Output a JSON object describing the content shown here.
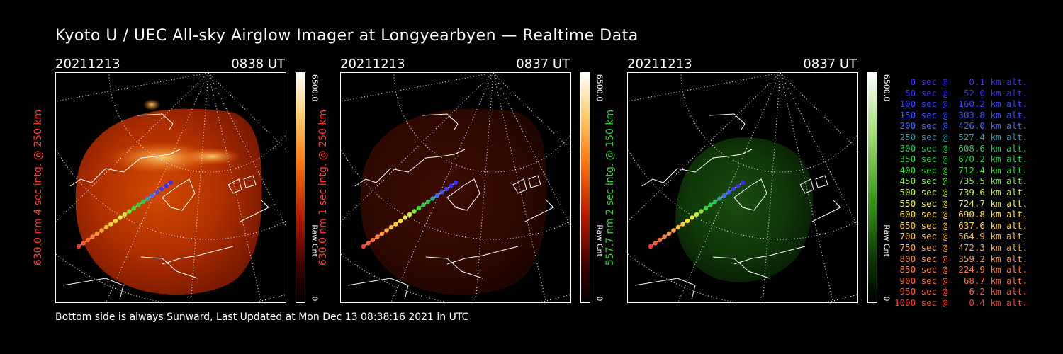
{
  "title": "Kyoto U / UEC All-sky Airglow Imager at Longyearbyen — Realtime Data",
  "footer": "Bottom side is always Sunward, Last Updated at Mon Dec 13 08:38:16 2021 in UTC",
  "panels": [
    {
      "date": "20211213",
      "time": "0838 UT",
      "ylabel": "630.0 nm 4 sec intg. @ 250 km",
      "ylabel_color": "#ff3a2a",
      "cbar_max": "6500.0",
      "cbar_min": "0",
      "cbar_unit": "Raw Cnt",
      "palette": "red",
      "intensity": "bright"
    },
    {
      "date": "20211213",
      "time": "0837 UT",
      "ylabel": "630.0 nm 1 sec intg. @ 250 km",
      "ylabel_color": "#ff3a2a",
      "cbar_max": "6500.0",
      "cbar_min": "0",
      "cbar_unit": "Raw Cnt",
      "palette": "red",
      "intensity": "dim"
    },
    {
      "date": "20211213",
      "time": "0837 UT",
      "ylabel": "557.7 nm 2 sec intg. @ 150 km",
      "ylabel_color": "#34d23c",
      "cbar_max": "6500.0",
      "cbar_min": "0",
      "cbar_unit": "Raw Cnt",
      "palette": "green",
      "intensity": "dim"
    }
  ],
  "legend": [
    {
      "text": "   0 sec @    0.1 km alt.",
      "color": "#3a2cff"
    },
    {
      "text": "  50 sec @   52.0 km alt.",
      "color": "#3a2cff"
    },
    {
      "text": " 100 sec @  160.2 km alt.",
      "color": "#3a3cff"
    },
    {
      "text": " 150 sec @  303.8 km alt.",
      "color": "#3a4cff"
    },
    {
      "text": " 200 sec @  426.0 km alt.",
      "color": "#3a6cff"
    },
    {
      "text": " 250 sec @  527.4 km alt.",
      "color": "#2aa0b0"
    },
    {
      "text": " 300 sec @  608.6 km alt.",
      "color": "#22c860"
    },
    {
      "text": " 350 sec @  670.2 km alt.",
      "color": "#22d040"
    },
    {
      "text": " 400 sec @  712.4 km alt.",
      "color": "#34e034"
    },
    {
      "text": " 450 sec @  735.5 km alt.",
      "color": "#7ee83a"
    },
    {
      "text": " 500 sec @  739.6 km alt.",
      "color": "#c8f03a"
    },
    {
      "text": " 550 sec @  724.7 km alt.",
      "color": "#f0f03a"
    },
    {
      "text": " 600 sec @  690.8 km alt.",
      "color": "#ffe23a"
    },
    {
      "text": " 650 sec @  637.6 km alt.",
      "color": "#ffd03a"
    },
    {
      "text": " 700 sec @  564.9 km alt.",
      "color": "#ffbe3a"
    },
    {
      "text": " 750 sec @  472.3 km alt.",
      "color": "#ffaa3a"
    },
    {
      "text": " 800 sec @  359.2 km alt.",
      "color": "#ff943a"
    },
    {
      "text": " 850 sec @  224.9 km alt.",
      "color": "#ff803a"
    },
    {
      "text": " 900 sec @   68.7 km alt.",
      "color": "#ff6a3a"
    },
    {
      "text": " 950 sec @    6.2 km alt.",
      "color": "#ff543a"
    },
    {
      "text": "1000 sec @    0.4 km alt.",
      "color": "#ff3a2a"
    }
  ]
}
